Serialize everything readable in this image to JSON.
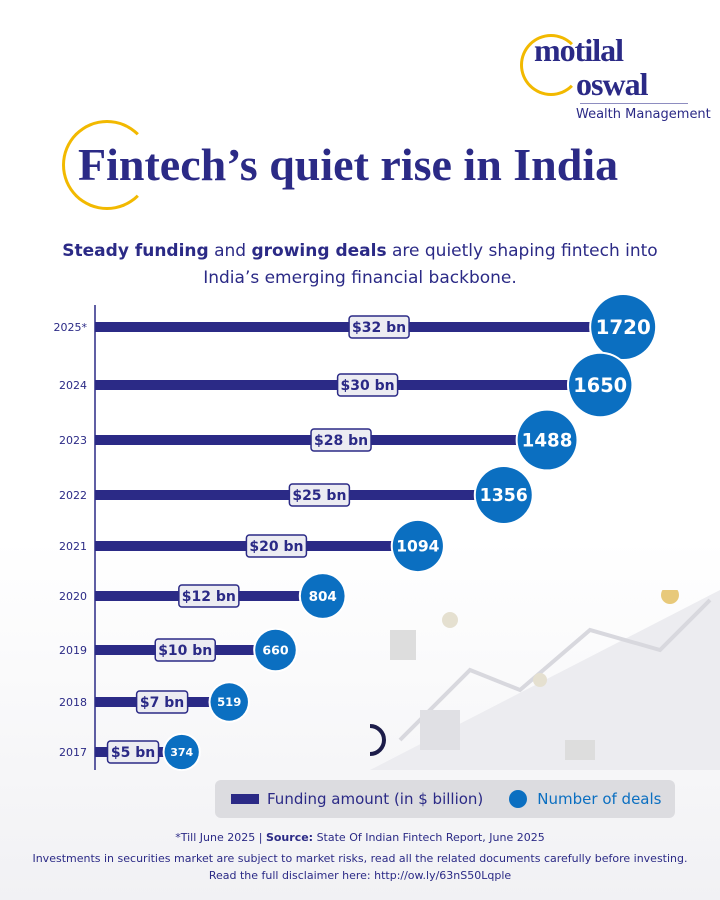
{
  "brand": {
    "logo_line1": "motilal",
    "logo_line2": "oswal",
    "tagline": "Wealth Management"
  },
  "title": "Fintech’s quiet rise in India",
  "subtitle": {
    "bold1": "Steady funding",
    "text1": " and ",
    "bold2": "growing deals",
    "text2": " are quietly shaping fintech into India’s emerging financial backbone."
  },
  "chart_data": {
    "type": "bar",
    "orientation": "horizontal",
    "categories": [
      "2025*",
      "2024",
      "2023",
      "2022",
      "2021",
      "2020",
      "2019",
      "2018",
      "2017"
    ],
    "series": [
      {
        "name": "Funding amount (in $ billion)",
        "values": [
          32,
          30,
          28,
          25,
          20,
          12,
          10,
          7,
          5
        ],
        "labels": [
          "$32 bn",
          "$30 bn",
          "$28 bn",
          "$25 bn",
          "$20 bn",
          "$12 bn",
          "$10 bn",
          "$7 bn",
          "$5 bn"
        ],
        "color": "#2b2a86"
      },
      {
        "name": "Number of deals",
        "values": [
          1720,
          1650,
          1488,
          1356,
          1094,
          804,
          660,
          519,
          374
        ],
        "color": "#0b6fc1"
      }
    ],
    "legend": "bottom"
  },
  "footer": {
    "note": "*Till June 2025  |  ",
    "source_label": "Source:",
    "source": " State Of Indian Fintech Report, June 2025",
    "disclaimer": "Investments in securities market are subject to market risks, read all the related documents carefully before investing.",
    "link": "Read the full disclaimer here: http://ow.ly/63nS50Lqple"
  }
}
